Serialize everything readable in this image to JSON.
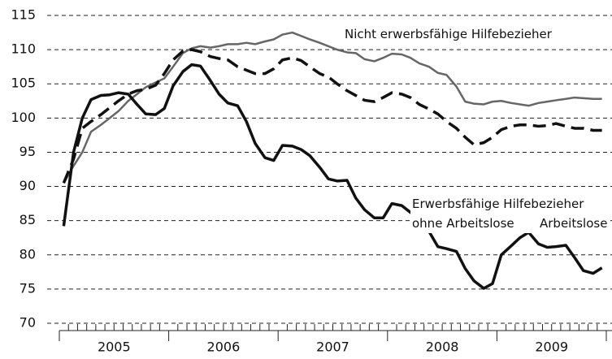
{
  "chart_data": {
    "type": "line",
    "x": [
      2005.04,
      2005.13,
      2005.21,
      2005.29,
      2005.38,
      2005.46,
      2005.54,
      2005.63,
      2005.71,
      2005.79,
      2005.88,
      2005.96,
      2006.04,
      2006.13,
      2006.21,
      2006.29,
      2006.38,
      2006.46,
      2006.54,
      2006.63,
      2006.71,
      2006.79,
      2006.88,
      2006.96,
      2007.04,
      2007.13,
      2007.21,
      2007.29,
      2007.38,
      2007.46,
      2007.54,
      2007.63,
      2007.71,
      2007.79,
      2007.88,
      2007.96,
      2008.04,
      2008.13,
      2008.21,
      2008.29,
      2008.38,
      2008.46,
      2008.54,
      2008.63,
      2008.71,
      2008.79,
      2008.88,
      2008.96,
      2009.04,
      2009.13,
      2009.21,
      2009.29,
      2009.38,
      2009.46,
      2009.54,
      2009.63,
      2009.71,
      2009.79,
      2009.88,
      2009.96
    ],
    "series": [
      {
        "name": "Nicht erwerbsfähige Hilfebezieher",
        "color": "#666666",
        "dash": false,
        "width": 2.5,
        "values": [
          90.5,
          93,
          95,
          98,
          99,
          100,
          101,
          102.5,
          103.5,
          104.5,
          105.2,
          105.8,
          107.5,
          109.5,
          110.2,
          110.5,
          110.3,
          110.5,
          110.8,
          110.8,
          111,
          110.8,
          111.2,
          111.5,
          112.2,
          112.5,
          112,
          111.5,
          111,
          110.5,
          110,
          109.6,
          109.5,
          108.6,
          108.3,
          108.8,
          109.4,
          109.3,
          108.8,
          108,
          107.5,
          106.6,
          106.3,
          104.6,
          102.4,
          102.1,
          102,
          102.4,
          102.5,
          102.2,
          102,
          101.8,
          102.2,
          102.4,
          102.6,
          102.8,
          103,
          102.9,
          102.8,
          102.8
        ]
      },
      {
        "name": "Erwerbsfähige Hilfebezieher ohne Arbeitslose",
        "color": "#111111",
        "dash": true,
        "width": 3.5,
        "values": [
          90.5,
          94,
          98.5,
          99.5,
          100.5,
          101.5,
          102.5,
          103.5,
          104,
          104.2,
          104.8,
          106.5,
          108.5,
          109.8,
          110,
          109.7,
          109,
          108.7,
          108.5,
          107.5,
          107,
          106.5,
          106.5,
          107.2,
          108.5,
          108.8,
          108.4,
          107.5,
          106.5,
          106,
          105,
          104,
          103.3,
          102.6,
          102.4,
          103,
          103.7,
          103.5,
          103,
          102,
          101.3,
          100.6,
          99.5,
          98.5,
          97.2,
          96.1,
          96.4,
          97.2,
          98.3,
          98.8,
          99,
          99,
          98.8,
          98.9,
          99.2,
          98.8,
          98.5,
          98.5,
          98.2,
          98.2
        ]
      },
      {
        "name": "Arbeitslose",
        "color": "#111111",
        "dash": false,
        "width": 3.5,
        "values": [
          84.2,
          95,
          100,
          102.7,
          103.3,
          103.4,
          103.7,
          103.5,
          102,
          100.6,
          100.5,
          101.4,
          104.7,
          106.8,
          107.8,
          107.6,
          105.5,
          103.5,
          102.2,
          101.8,
          99.5,
          96.3,
          94.2,
          93.8,
          96,
          95.9,
          95.4,
          94.5,
          92.8,
          91.1,
          90.8,
          90.9,
          88.3,
          86.6,
          85.4,
          85.4,
          87.5,
          87.2,
          86.2,
          85.2,
          83.4,
          81.2,
          80.9,
          80.5,
          78,
          76.2,
          75.1,
          75.8,
          80,
          81.3,
          82.5,
          83.3,
          81.6,
          81.1,
          81.2,
          81.4,
          79.6,
          77.7,
          77.3,
          78.1
        ]
      }
    ],
    "xlim": [
      2005,
      2010
    ],
    "xticks": [
      {
        "value": 2005.5,
        "label": "2005"
      },
      {
        "value": 2006.5,
        "label": "2006"
      },
      {
        "value": 2007.5,
        "label": "2007"
      },
      {
        "value": 2008.5,
        "label": "2008"
      },
      {
        "value": 2009.5,
        "label": "2009"
      }
    ],
    "xboundaries": [
      2005,
      2006,
      2007,
      2008,
      2009,
      2010
    ],
    "ylim": [
      70,
      115
    ],
    "yticks": [
      70,
      75,
      80,
      85,
      90,
      95,
      100,
      105,
      110,
      115
    ],
    "grid": true
  }
}
